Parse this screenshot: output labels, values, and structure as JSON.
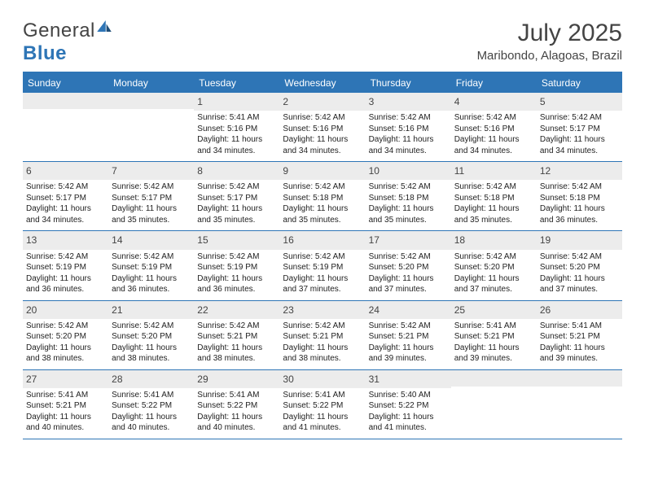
{
  "brand": {
    "part1": "General",
    "part2": "Blue"
  },
  "title": "July 2025",
  "location": "Maribondo, Alagoas, Brazil",
  "colors": {
    "accent": "#2e75b6",
    "header_bg": "#2e75b6",
    "header_text": "#ffffff",
    "daynum_bg": "#ececec",
    "text": "#333333"
  },
  "weekdays": [
    "Sunday",
    "Monday",
    "Tuesday",
    "Wednesday",
    "Thursday",
    "Friday",
    "Saturday"
  ],
  "weeks": [
    [
      null,
      null,
      {
        "n": "1",
        "sr": "5:41 AM",
        "ss": "5:16 PM",
        "dl": "11 hours and 34 minutes."
      },
      {
        "n": "2",
        "sr": "5:42 AM",
        "ss": "5:16 PM",
        "dl": "11 hours and 34 minutes."
      },
      {
        "n": "3",
        "sr": "5:42 AM",
        "ss": "5:16 PM",
        "dl": "11 hours and 34 minutes."
      },
      {
        "n": "4",
        "sr": "5:42 AM",
        "ss": "5:16 PM",
        "dl": "11 hours and 34 minutes."
      },
      {
        "n": "5",
        "sr": "5:42 AM",
        "ss": "5:17 PM",
        "dl": "11 hours and 34 minutes."
      }
    ],
    [
      {
        "n": "6",
        "sr": "5:42 AM",
        "ss": "5:17 PM",
        "dl": "11 hours and 34 minutes."
      },
      {
        "n": "7",
        "sr": "5:42 AM",
        "ss": "5:17 PM",
        "dl": "11 hours and 35 minutes."
      },
      {
        "n": "8",
        "sr": "5:42 AM",
        "ss": "5:17 PM",
        "dl": "11 hours and 35 minutes."
      },
      {
        "n": "9",
        "sr": "5:42 AM",
        "ss": "5:18 PM",
        "dl": "11 hours and 35 minutes."
      },
      {
        "n": "10",
        "sr": "5:42 AM",
        "ss": "5:18 PM",
        "dl": "11 hours and 35 minutes."
      },
      {
        "n": "11",
        "sr": "5:42 AM",
        "ss": "5:18 PM",
        "dl": "11 hours and 35 minutes."
      },
      {
        "n": "12",
        "sr": "5:42 AM",
        "ss": "5:18 PM",
        "dl": "11 hours and 36 minutes."
      }
    ],
    [
      {
        "n": "13",
        "sr": "5:42 AM",
        "ss": "5:19 PM",
        "dl": "11 hours and 36 minutes."
      },
      {
        "n": "14",
        "sr": "5:42 AM",
        "ss": "5:19 PM",
        "dl": "11 hours and 36 minutes."
      },
      {
        "n": "15",
        "sr": "5:42 AM",
        "ss": "5:19 PM",
        "dl": "11 hours and 36 minutes."
      },
      {
        "n": "16",
        "sr": "5:42 AM",
        "ss": "5:19 PM",
        "dl": "11 hours and 37 minutes."
      },
      {
        "n": "17",
        "sr": "5:42 AM",
        "ss": "5:20 PM",
        "dl": "11 hours and 37 minutes."
      },
      {
        "n": "18",
        "sr": "5:42 AM",
        "ss": "5:20 PM",
        "dl": "11 hours and 37 minutes."
      },
      {
        "n": "19",
        "sr": "5:42 AM",
        "ss": "5:20 PM",
        "dl": "11 hours and 37 minutes."
      }
    ],
    [
      {
        "n": "20",
        "sr": "5:42 AM",
        "ss": "5:20 PM",
        "dl": "11 hours and 38 minutes."
      },
      {
        "n": "21",
        "sr": "5:42 AM",
        "ss": "5:20 PM",
        "dl": "11 hours and 38 minutes."
      },
      {
        "n": "22",
        "sr": "5:42 AM",
        "ss": "5:21 PM",
        "dl": "11 hours and 38 minutes."
      },
      {
        "n": "23",
        "sr": "5:42 AM",
        "ss": "5:21 PM",
        "dl": "11 hours and 38 minutes."
      },
      {
        "n": "24",
        "sr": "5:42 AM",
        "ss": "5:21 PM",
        "dl": "11 hours and 39 minutes."
      },
      {
        "n": "25",
        "sr": "5:41 AM",
        "ss": "5:21 PM",
        "dl": "11 hours and 39 minutes."
      },
      {
        "n": "26",
        "sr": "5:41 AM",
        "ss": "5:21 PM",
        "dl": "11 hours and 39 minutes."
      }
    ],
    [
      {
        "n": "27",
        "sr": "5:41 AM",
        "ss": "5:21 PM",
        "dl": "11 hours and 40 minutes."
      },
      {
        "n": "28",
        "sr": "5:41 AM",
        "ss": "5:22 PM",
        "dl": "11 hours and 40 minutes."
      },
      {
        "n": "29",
        "sr": "5:41 AM",
        "ss": "5:22 PM",
        "dl": "11 hours and 40 minutes."
      },
      {
        "n": "30",
        "sr": "5:41 AM",
        "ss": "5:22 PM",
        "dl": "11 hours and 41 minutes."
      },
      {
        "n": "31",
        "sr": "5:40 AM",
        "ss": "5:22 PM",
        "dl": "11 hours and 41 minutes."
      },
      null,
      null
    ]
  ],
  "labels": {
    "sunrise": "Sunrise:",
    "sunset": "Sunset:",
    "daylight": "Daylight:"
  }
}
